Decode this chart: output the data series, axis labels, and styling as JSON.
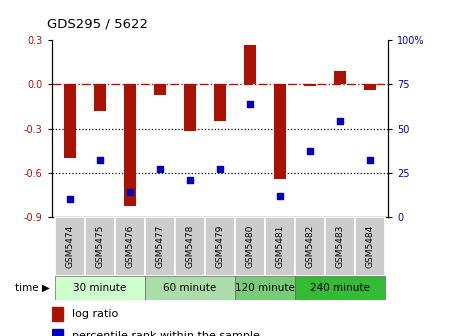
{
  "title": "GDS295 / 5622",
  "samples": [
    "GSM5474",
    "GSM5475",
    "GSM5476",
    "GSM5477",
    "GSM5478",
    "GSM5479",
    "GSM5480",
    "GSM5481",
    "GSM5482",
    "GSM5483",
    "GSM5484"
  ],
  "log_ratio": [
    -0.5,
    -0.18,
    -0.83,
    -0.07,
    -0.32,
    -0.25,
    0.27,
    -0.64,
    -0.01,
    0.09,
    -0.04
  ],
  "percentile_rank": [
    10,
    32,
    14,
    27,
    21,
    27,
    64,
    12,
    37,
    54,
    32
  ],
  "ylim_left": [
    -0.9,
    0.3
  ],
  "ylim_right": [
    0,
    100
  ],
  "yticks_left": [
    -0.9,
    -0.6,
    -0.3,
    0.0,
    0.3
  ],
  "yticks_right": [
    0,
    25,
    50,
    75,
    100
  ],
  "groups": [
    {
      "label": "30 minute",
      "samples": [
        0,
        1,
        2
      ],
      "color": "#ccffcc"
    },
    {
      "label": "60 minute",
      "samples": [
        3,
        4,
        5
      ],
      "color": "#aaddaa"
    },
    {
      "label": "120 minute",
      "samples": [
        6,
        7
      ],
      "color": "#77cc77"
    },
    {
      "label": "240 minute",
      "samples": [
        8,
        9,
        10
      ],
      "color": "#33bb33"
    }
  ],
  "bar_color": "#aa1100",
  "scatter_color": "#0000bb",
  "zero_line_color": "#bb1100",
  "dotted_line_color": "#000000",
  "bg_plot": "#ffffff",
  "bg_sample_row": "#cccccc",
  "time_row_colors": [
    "#ccffcc",
    "#aaddaa",
    "#77cc77",
    "#33bb33"
  ],
  "figsize": [
    4.49,
    3.36
  ],
  "dpi": 100
}
